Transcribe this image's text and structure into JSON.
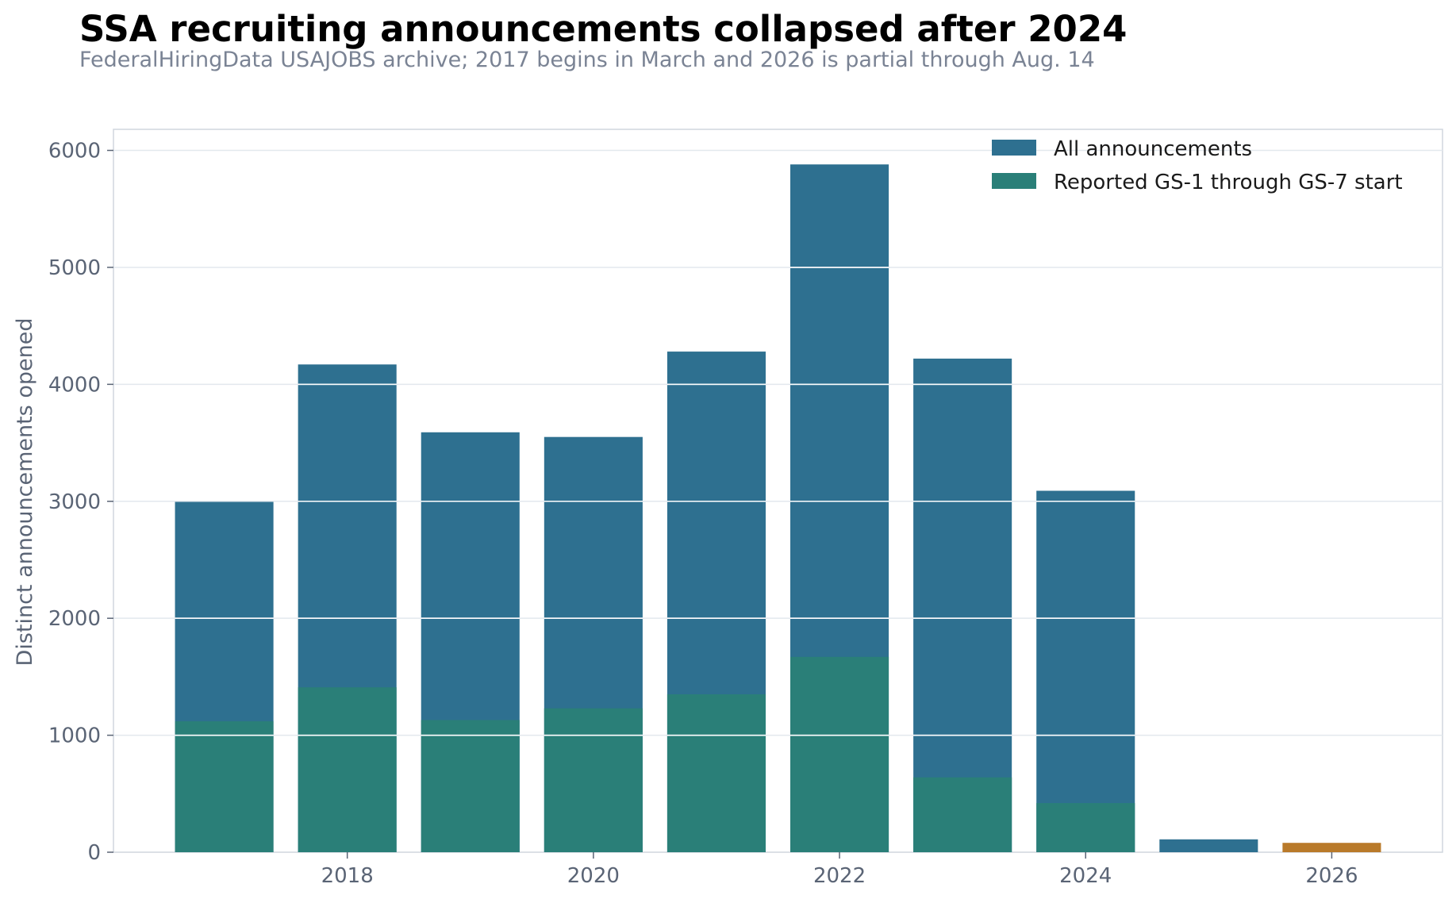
{
  "title": "SSA recruiting announcements collapsed after 2024",
  "subtitle": "FederalHiringData USAJOBS archive; 2017 begins in March and 2026 is partial through Aug. 14",
  "chart_data": {
    "type": "bar",
    "categories": [
      2017,
      2018,
      2019,
      2020,
      2021,
      2022,
      2023,
      2024,
      2025,
      2026
    ],
    "series": [
      {
        "name": "All announcements",
        "color": "#2e7090",
        "values": [
          3000,
          4170,
          3590,
          3550,
          4280,
          5880,
          4220,
          3090,
          110,
          80
        ]
      },
      {
        "name": "Reported GS-1 through GS-7 start",
        "color": "#2a7f78",
        "values": [
          1120,
          1410,
          1130,
          1230,
          1350,
          1670,
          640,
          420,
          0,
          0
        ]
      }
    ],
    "highlight": {
      "category": 2026,
      "color": "#b97a2a"
    },
    "xlabel": "",
    "ylabel": "Distinct announcements opened",
    "xticks": [
      2018,
      2020,
      2022,
      2024,
      2026
    ],
    "yticks": [
      0,
      1000,
      2000,
      3000,
      4000,
      5000,
      6000
    ],
    "xlim": [
      2016.1,
      2026.9
    ],
    "ylim": [
      0,
      6180
    ],
    "grid": true,
    "legend_position": "top-right",
    "colors": {
      "axis": "#d0d6de",
      "grid": "#e3e8ee",
      "tick_text": "#5a6475"
    }
  }
}
